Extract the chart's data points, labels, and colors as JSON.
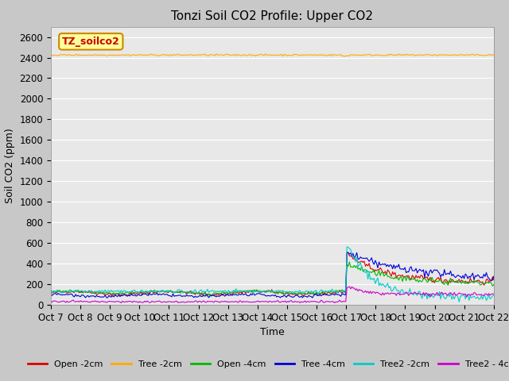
{
  "title": "Tonzi Soil CO2 Profile: Upper CO2",
  "ylabel": "Soil CO2 (ppm)",
  "xlabel": "Time",
  "xlim": [
    0,
    15
  ],
  "ylim": [
    0,
    2700
  ],
  "yticks": [
    0,
    200,
    400,
    600,
    800,
    1000,
    1200,
    1400,
    1600,
    1800,
    2000,
    2200,
    2400,
    2600
  ],
  "xtick_labels": [
    "Oct 7",
    "Oct 8",
    "Oct 9",
    "Oct 10",
    "Oct 11",
    "Oct 12",
    "Oct 13",
    "Oct 14",
    "Oct 15",
    "Oct 16",
    "Oct 17",
    "Oct 18",
    "Oct 19",
    "Oct 20",
    "Oct 21",
    "Oct 22"
  ],
  "fig_bg_color": "#c8c8c8",
  "plot_bg_color": "#e8e8e8",
  "legend_label": "TZ_soilco2",
  "legend_box_facecolor": "#ffff99",
  "legend_box_edgecolor": "#cc8800",
  "legend_text_color": "#cc0000",
  "series_colors": {
    "Open -2cm": "#dd0000",
    "Tree -2cm": "#ffaa00",
    "Open -4cm": "#00bb00",
    "Tree -4cm": "#0000dd",
    "Tree2 -2cm": "#00cccc",
    "Tree2 - 4cm": "#cc00cc"
  },
  "title_fontsize": 11,
  "axis_label_fontsize": 9,
  "tick_fontsize": 8.5,
  "legend_fontsize": 8
}
